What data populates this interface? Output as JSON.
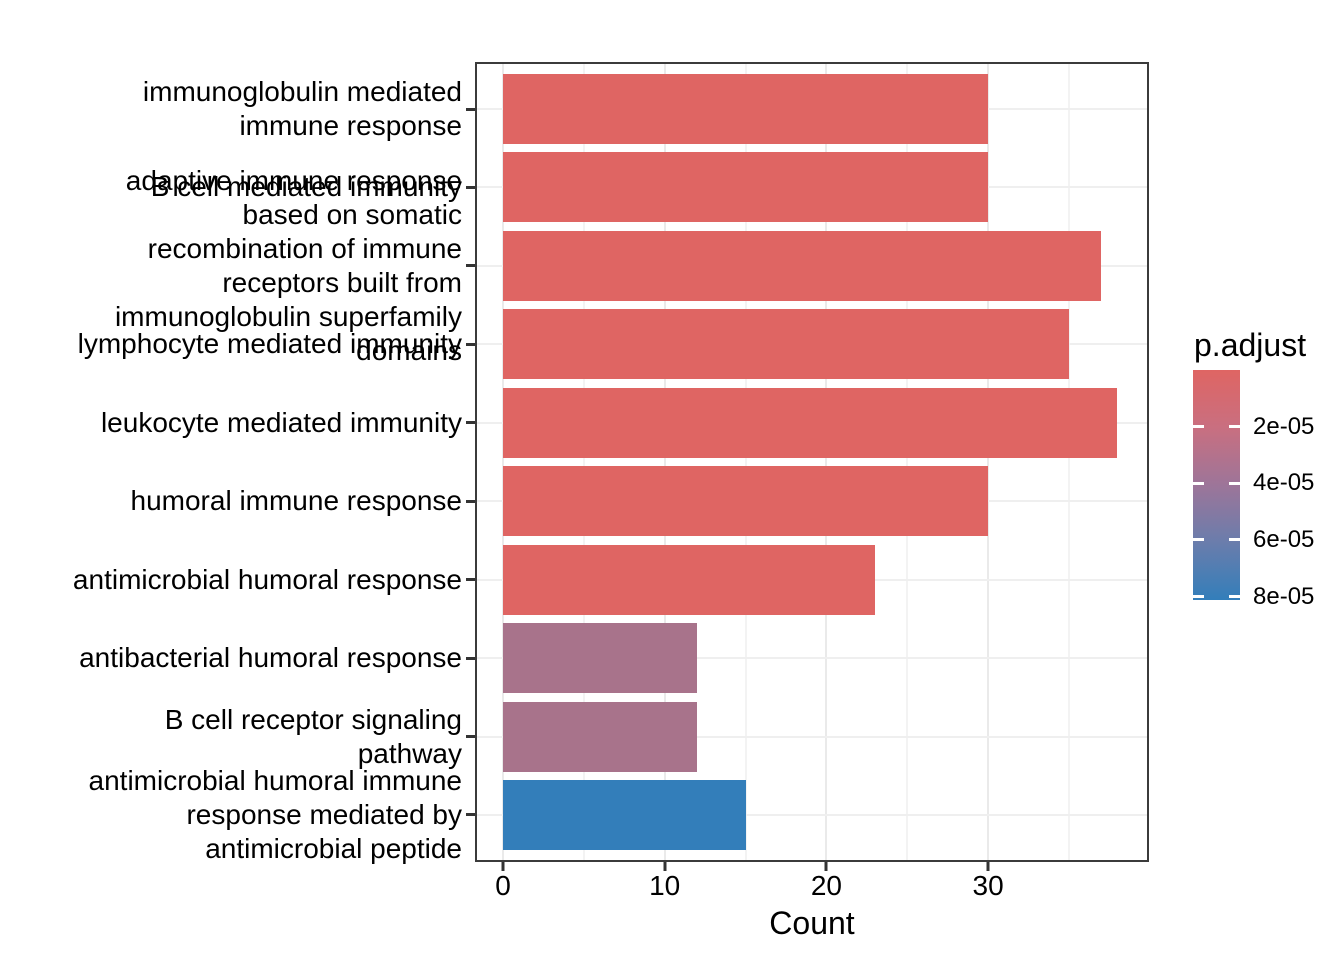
{
  "figure": {
    "background": "#FFFFFF"
  },
  "chart_data": {
    "type": "bar",
    "orientation": "horizontal",
    "title": "",
    "xlabel": "Count",
    "ylabel": "",
    "xlim": [
      0,
      40
    ],
    "x_major_ticks": [
      0,
      10,
      20,
      30
    ],
    "x_minor_ticks": [
      5,
      15,
      25,
      35
    ],
    "grid": true,
    "panel_border": "#3B3B3B",
    "bars": [
      {
        "label": "immunoglobulin mediated immune response",
        "lines": [
          "immunoglobulin mediated",
          "immune response"
        ],
        "value": 30,
        "color": "#DF6563"
      },
      {
        "label": "B cell mediated immunity",
        "lines": [
          "B cell mediated immunity"
        ],
        "value": 30,
        "color": "#DF6563"
      },
      {
        "label": "adaptive immune response based on somatic recombination of immune receptors built from immunoglobulin superfamily domains",
        "lines": [
          "adaptive immune response",
          "based on somatic",
          "recombination of immune",
          "receptors built from",
          "immunoglobulin superfamily",
          "domains"
        ],
        "value": 37,
        "color": "#DF6563"
      },
      {
        "label": "lymphocyte mediated immunity",
        "lines": [
          "lymphocyte mediated immunity"
        ],
        "value": 35,
        "color": "#DF6563"
      },
      {
        "label": "leukocyte mediated immunity",
        "lines": [
          "leukocyte mediated immunity"
        ],
        "value": 38,
        "color": "#DF6563"
      },
      {
        "label": "humoral immune response",
        "lines": [
          "humoral immune response"
        ],
        "value": 30,
        "color": "#DF6563"
      },
      {
        "label": "antimicrobial humoral response",
        "lines": [
          "antimicrobial humoral response"
        ],
        "value": 23,
        "color": "#DF6563"
      },
      {
        "label": "antibacterial humoral response",
        "lines": [
          "antibacterial humoral response"
        ],
        "value": 12,
        "color": "#A8738B"
      },
      {
        "label": "B cell receptor signaling pathway",
        "lines": [
          "B cell receptor signaling",
          "pathway"
        ],
        "value": 12,
        "color": "#A8738B"
      },
      {
        "label": "antimicrobial humoral immune response mediated by antimicrobial peptide",
        "lines": [
          "antimicrobial humoral immune",
          "response mediated by",
          "antimicrobial peptide"
        ],
        "value": 15,
        "color": "#337EBA"
      }
    ],
    "legend": {
      "position": "right",
      "title": "p.adjust",
      "domain": [
        0,
        8.12e-05
      ],
      "ticks": [
        {
          "label": "2e-05",
          "value": 2e-05
        },
        {
          "label": "4e-05",
          "value": 4e-05
        },
        {
          "label": "6e-05",
          "value": 6e-05
        },
        {
          "label": "8e-05",
          "value": 8e-05
        }
      ],
      "gradient_stops": [
        {
          "color": "#DF6563",
          "pos": 0
        },
        {
          "color": "#C96F80",
          "pos": 0.25
        },
        {
          "color": "#9D7599",
          "pos": 0.5
        },
        {
          "color": "#6A7DAC",
          "pos": 0.75
        },
        {
          "color": "#337EBA",
          "pos": 1
        }
      ]
    }
  }
}
